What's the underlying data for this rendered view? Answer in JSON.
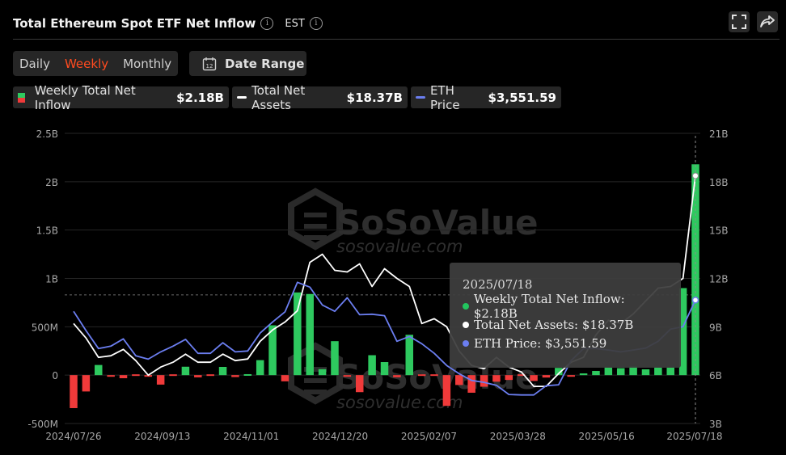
{
  "header": {
    "title": "Total Ethereum Spot ETF Net Inflow",
    "timezone": "EST"
  },
  "period_tabs": [
    "Daily",
    "Weekly",
    "Monthly"
  ],
  "active_period": "Weekly",
  "date_range_label": "Date Range",
  "date_range_icon_text": "12",
  "legend": [
    {
      "name": "Weekly Total Net Inflow",
      "value": "$2.18B"
    },
    {
      "name": "Total Net Assets",
      "value": "$18.37B"
    },
    {
      "name": "ETH Price",
      "value": "$3,551.59"
    }
  ],
  "watermark": {
    "brand": "SoSoValue",
    "url": "sosovalue.com"
  },
  "tooltip": {
    "date": "2025/07/18",
    "rows": [
      {
        "label": "Weekly Total Net Inflow: $2.18B",
        "color": "#22c55e"
      },
      {
        "label": "Total Net Assets: $18.37B",
        "color": "#ffffff"
      },
      {
        "label": "ETH Price: $3,551.59",
        "color": "#6b7ef0"
      }
    ]
  },
  "colors": {
    "positive_bar": "#2ec95f",
    "negative_bar": "#f03a3a",
    "net_assets_line": "#ffffff",
    "eth_price_line": "#6b7ef0",
    "accent": "#ff4b1f"
  },
  "chart_data": {
    "type": "bar",
    "title": "Total Ethereum Spot ETF Net Inflow",
    "x_tick_labels": [
      "2024/07/26",
      "2024/09/13",
      "2024/11/01",
      "2024/12/20",
      "2025/02/07",
      "2025/03/28",
      "2025/05/16",
      "2025/07/18"
    ],
    "left_axis": {
      "tick_labels": [
        "-500M",
        "0",
        "500M",
        "1B",
        "1.5B",
        "2B",
        "2.5B"
      ],
      "ylim": [
        -500000000,
        2500000000
      ]
    },
    "right_axis": {
      "tick_labels": [
        "3B",
        "6B",
        "9B",
        "12B",
        "15B",
        "18B",
        "21B"
      ],
      "ylim": [
        3000000000,
        21000000000
      ]
    },
    "grid": true,
    "reference_line": 830000000,
    "weeks_first": "2024/07/26",
    "weeks_last": "2025/07/18",
    "series": [
      {
        "name": "Weekly Total Net Inflow",
        "axis": "left",
        "type": "bar",
        "values_usd_millions": [
          -341,
          -169,
          105,
          -5,
          -32,
          0,
          -12,
          -98,
          0,
          87,
          -23,
          0,
          85,
          -20,
          10,
          155,
          515,
          -64,
          855,
          839,
          62,
          351,
          -5,
          -176,
          206,
          135,
          -22,
          417,
          0,
          0,
          -318,
          -102,
          -182,
          -120,
          -68,
          -50,
          0,
          -60,
          -25,
          75,
          -15,
          18,
          43,
          80,
          72,
          90,
          60,
          79,
          80,
          900,
          2180
        ]
      },
      {
        "name": "Total Net Assets",
        "axis": "right",
        "type": "line",
        "values_usd_billions": [
          9.2,
          8.3,
          7.1,
          7.2,
          7.6,
          6.9,
          6.0,
          6.5,
          6.8,
          7.3,
          6.8,
          6.8,
          7.3,
          6.9,
          7.0,
          8.1,
          8.8,
          9.3,
          10.0,
          13.0,
          13.5,
          12.5,
          12.4,
          12.9,
          11.5,
          12.6,
          12.0,
          11.5,
          9.2,
          9.5,
          9.0,
          7.5,
          6.6,
          6.4,
          7.1,
          6.5,
          6.2,
          5.3,
          5.3,
          6.1,
          6.8,
          7.1,
          8.5,
          9.4,
          9.2,
          9.8,
          10.6,
          11.4,
          11.5,
          12.0,
          18.37
        ]
      },
      {
        "name": "ETH Price",
        "axis": "right",
        "type": "line",
        "values_usd": [
          3320,
          2920,
          2550,
          2600,
          2750,
          2400,
          2330,
          2480,
          2600,
          2740,
          2450,
          2450,
          2670,
          2480,
          2500,
          2870,
          3100,
          3310,
          3920,
          3820,
          3450,
          3320,
          3600,
          3250,
          3260,
          3230,
          2700,
          2800,
          2650,
          2450,
          2200,
          2030,
          1890,
          1850,
          1790,
          1600,
          1590,
          1590,
          1780,
          1800,
          2300,
          2550,
          2550,
          2520,
          2480,
          2520,
          2560,
          2700,
          2950,
          3000,
          3551.59
        ]
      }
    ]
  }
}
